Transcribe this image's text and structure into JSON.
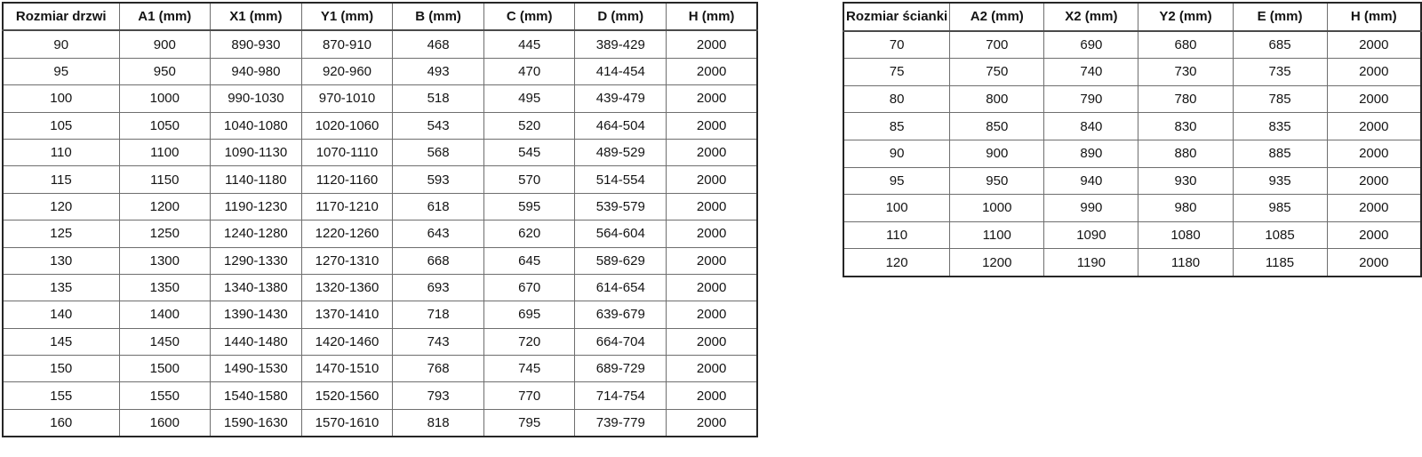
{
  "colors": {
    "background": "#ffffff",
    "text": "#141414",
    "inner_border": "#6e6e6e",
    "outer_border": "#262626"
  },
  "door_table": {
    "headers": [
      "Rozmiar drzwi",
      "A1 (mm)",
      "X1 (mm)",
      "Y1 (mm)",
      "B (mm)",
      "C (mm)",
      "D (mm)",
      "H (mm)"
    ],
    "rows": [
      [
        "90",
        "900",
        "890-930",
        "870-910",
        "468",
        "445",
        "389-429",
        "2000"
      ],
      [
        "95",
        "950",
        "940-980",
        "920-960",
        "493",
        "470",
        "414-454",
        "2000"
      ],
      [
        "100",
        "1000",
        "990-1030",
        "970-1010",
        "518",
        "495",
        "439-479",
        "2000"
      ],
      [
        "105",
        "1050",
        "1040-1080",
        "1020-1060",
        "543",
        "520",
        "464-504",
        "2000"
      ],
      [
        "110",
        "1100",
        "1090-1130",
        "1070-1110",
        "568",
        "545",
        "489-529",
        "2000"
      ],
      [
        "115",
        "1150",
        "1140-1180",
        "1120-1160",
        "593",
        "570",
        "514-554",
        "2000"
      ],
      [
        "120",
        "1200",
        "1190-1230",
        "1170-1210",
        "618",
        "595",
        "539-579",
        "2000"
      ],
      [
        "125",
        "1250",
        "1240-1280",
        "1220-1260",
        "643",
        "620",
        "564-604",
        "2000"
      ],
      [
        "130",
        "1300",
        "1290-1330",
        "1270-1310",
        "668",
        "645",
        "589-629",
        "2000"
      ],
      [
        "135",
        "1350",
        "1340-1380",
        "1320-1360",
        "693",
        "670",
        "614-654",
        "2000"
      ],
      [
        "140",
        "1400",
        "1390-1430",
        "1370-1410",
        "718",
        "695",
        "639-679",
        "2000"
      ],
      [
        "145",
        "1450",
        "1440-1480",
        "1420-1460",
        "743",
        "720",
        "664-704",
        "2000"
      ],
      [
        "150",
        "1500",
        "1490-1530",
        "1470-1510",
        "768",
        "745",
        "689-729",
        "2000"
      ],
      [
        "155",
        "1550",
        "1540-1580",
        "1520-1560",
        "793",
        "770",
        "714-754",
        "2000"
      ],
      [
        "160",
        "1600",
        "1590-1630",
        "1570-1610",
        "818",
        "795",
        "739-779",
        "2000"
      ]
    ]
  },
  "wall_table": {
    "headers": [
      "Rozmiar ścianki",
      "A2 (mm)",
      "X2 (mm)",
      "Y2 (mm)",
      "E (mm)",
      "H (mm)"
    ],
    "rows": [
      [
        "70",
        "700",
        "690",
        "680",
        "685",
        "2000"
      ],
      [
        "75",
        "750",
        "740",
        "730",
        "735",
        "2000"
      ],
      [
        "80",
        "800",
        "790",
        "780",
        "785",
        "2000"
      ],
      [
        "85",
        "850",
        "840",
        "830",
        "835",
        "2000"
      ],
      [
        "90",
        "900",
        "890",
        "880",
        "885",
        "2000"
      ],
      [
        "95",
        "950",
        "940",
        "930",
        "935",
        "2000"
      ],
      [
        "100",
        "1000",
        "990",
        "980",
        "985",
        "2000"
      ],
      [
        "110",
        "1100",
        "1090",
        "1080",
        "1085",
        "2000"
      ],
      [
        "120",
        "1200",
        "1190",
        "1180",
        "1185",
        "2000"
      ]
    ]
  }
}
